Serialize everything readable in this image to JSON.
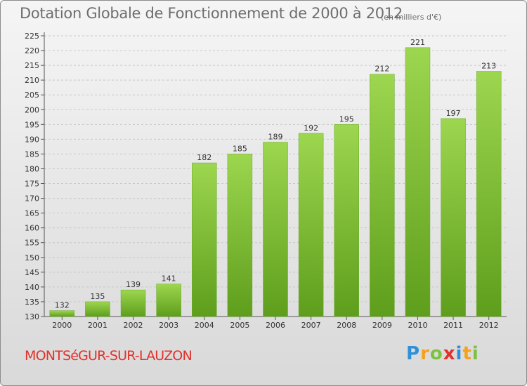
{
  "chart_data": {
    "type": "bar",
    "title": "Dotation Globale de Fonctionnement de 2000 à 2012",
    "subtitle": "(en milliers d'€)",
    "categories": [
      "2000",
      "2001",
      "2002",
      "2003",
      "2004",
      "2005",
      "2006",
      "2007",
      "2008",
      "2009",
      "2010",
      "2011",
      "2012"
    ],
    "values": [
      132,
      135,
      139,
      141,
      182,
      185,
      189,
      192,
      195,
      212,
      221,
      197,
      213
    ],
    "ylim": [
      130,
      225
    ],
    "ytick_step": 5,
    "grid": true,
    "bar_color": "#7fc23a",
    "bar_color_dark": "#5e9e1c"
  },
  "footer": {
    "commune": "MONTSéGUR-SUR-LAUZON"
  },
  "logo": {
    "text": "Proxiti",
    "letters": [
      {
        "char": "P",
        "color": "#2f8fd8"
      },
      {
        "char": "r",
        "color": "#f5a21b"
      },
      {
        "char": "o",
        "color": "#7cc241"
      },
      {
        "char": "x",
        "color": "#e2312b"
      },
      {
        "char": "i",
        "color": "#2f8fd8"
      },
      {
        "char": "t",
        "color": "#f5a21b"
      },
      {
        "char": "i",
        "color": "#7cc241"
      }
    ]
  }
}
